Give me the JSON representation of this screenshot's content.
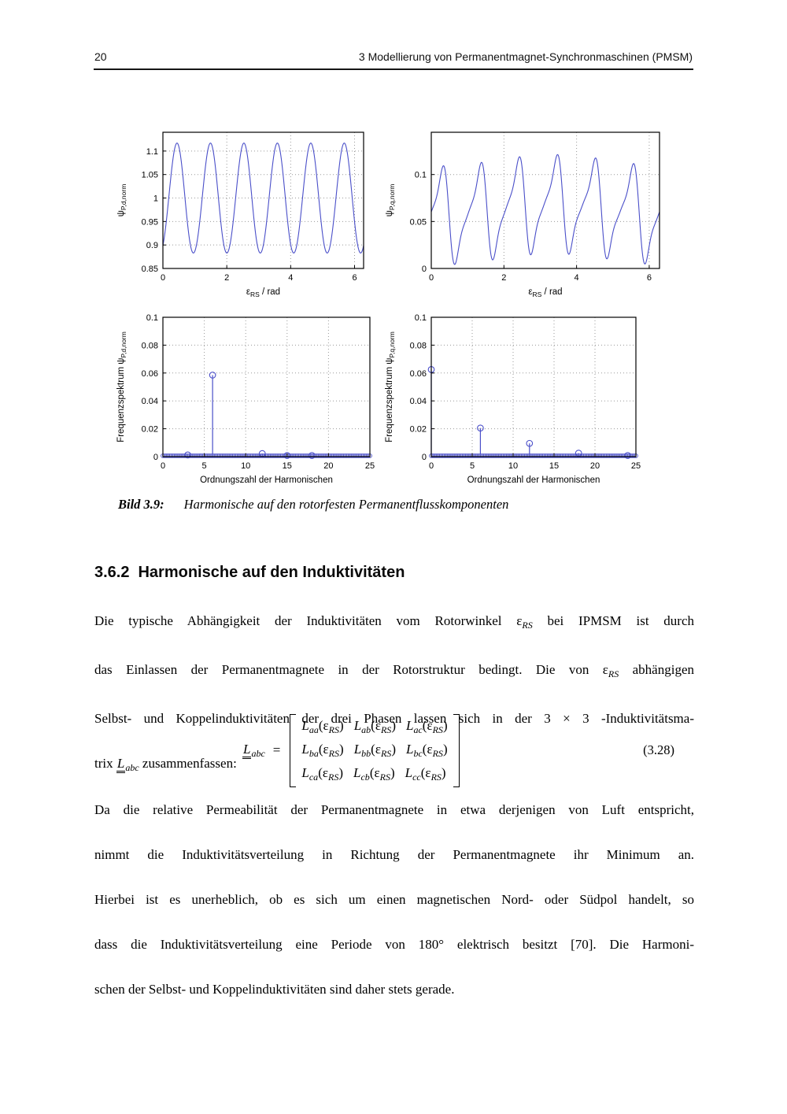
{
  "page": {
    "number": "20",
    "running_title": "3 Modellierung von Permanentmagnet-Synchronmaschinen (PMSM)"
  },
  "colors": {
    "curve": "#4a4fc9",
    "axis": "#000000",
    "grid": "#999999",
    "rule": "#161616"
  },
  "figure": {
    "caption_label": "Bild 3.9:",
    "caption_text": "Harmonische auf den rotorfesten Permanentflusskomponenten"
  },
  "chart_data": [
    {
      "name": "flux-d-waveform",
      "type": "line",
      "ylabel": {
        "pre": "ψ",
        "sub": "P,d,norm",
        "post": ""
      },
      "xlabel": {
        "pre": "ε",
        "sub": "RS",
        "post": " / rad"
      },
      "xlim": [
        0,
        6.2832
      ],
      "ylim": [
        0.85,
        1.14
      ],
      "xticks": [
        {
          "v": 0,
          "l": "0"
        },
        {
          "v": 2,
          "l": "2"
        },
        {
          "v": 4,
          "l": "4"
        },
        {
          "v": 6,
          "l": "6"
        }
      ],
      "yticks": [
        {
          "v": 0.85,
          "l": "0.85"
        },
        {
          "v": 0.9,
          "l": "0.9"
        },
        {
          "v": 0.95,
          "l": "0.95"
        },
        {
          "v": 1,
          "l": "1"
        },
        {
          "v": 1.05,
          "l": "1.05"
        },
        {
          "v": 1.1,
          "l": "1.1"
        }
      ],
      "grid_x": [
        2,
        4,
        6
      ],
      "grid_y": [
        0.9,
        0.95,
        1,
        1.05,
        1.1
      ],
      "grid_on": true,
      "legend": null,
      "model": {
        "dc": 0.9975,
        "harmonics": [
          {
            "n": 6,
            "amp": 0.117,
            "phase": -1.05
          },
          {
            "n": 12,
            "amp": 0.003,
            "phase": 2.0
          }
        ]
      }
    },
    {
      "name": "flux-q-waveform",
      "type": "line",
      "ylabel": {
        "pre": "ψ",
        "sub": "P,q,norm",
        "post": ""
      },
      "xlabel": {
        "pre": "ε",
        "sub": "RS",
        "post": " / rad"
      },
      "xlim": [
        0,
        6.2832
      ],
      "ylim": [
        0,
        0.145
      ],
      "xticks": [
        {
          "v": 0,
          "l": "0"
        },
        {
          "v": 2,
          "l": "2"
        },
        {
          "v": 4,
          "l": "4"
        },
        {
          "v": 6,
          "l": "6"
        }
      ],
      "yticks": [
        {
          "v": 0,
          "l": "0"
        },
        {
          "v": 0.05,
          "l": "0.05"
        },
        {
          "v": 0.1,
          "l": "0.1"
        }
      ],
      "grid_x": [
        2,
        4,
        6
      ],
      "grid_y": [
        0.05,
        0.1
      ],
      "grid_on": true,
      "legend": null,
      "model": {
        "dc": 0.0625,
        "harmonics": [
          {
            "n": 1,
            "amp": 0.006,
            "phase": 4.5
          },
          {
            "n": 6,
            "amp": 0.041,
            "phase": 0.2
          },
          {
            "n": 12,
            "amp": 0.019,
            "phase": 3.54
          },
          {
            "n": 18,
            "amp": 0.005,
            "phase": 0.6
          }
        ]
      }
    },
    {
      "name": "spectrum-d",
      "type": "stem",
      "ylabel": {
        "pre": "Frequenzspektrum ψ",
        "sub": "P,d,norm",
        "post": ""
      },
      "xlabel": {
        "pre": "Ordnungszahl der Harmonischen",
        "sub": "",
        "post": ""
      },
      "xlim": [
        0,
        25
      ],
      "ylim": [
        0,
        0.1
      ],
      "xticks": [
        {
          "v": 0,
          "l": "0"
        },
        {
          "v": 5,
          "l": "5"
        },
        {
          "v": 10,
          "l": "10"
        },
        {
          "v": 15,
          "l": "15"
        },
        {
          "v": 20,
          "l": "20"
        },
        {
          "v": 25,
          "l": "25"
        }
      ],
      "yticks": [
        {
          "v": 0,
          "l": "0"
        },
        {
          "v": 0.02,
          "l": "0.02"
        },
        {
          "v": 0.04,
          "l": "0.04"
        },
        {
          "v": 0.06,
          "l": "0.06"
        },
        {
          "v": 0.08,
          "l": "0.08"
        },
        {
          "v": 0.1,
          "l": "0.1"
        }
      ],
      "grid_x": [
        5,
        10,
        15,
        20
      ],
      "grid_y": [
        0.02,
        0.04,
        0.06,
        0.08
      ],
      "grid_on": true,
      "legend": null,
      "stems": [
        {
          "x": 6,
          "y": 0.0585
        },
        {
          "x": 12,
          "y": 0.0022
        },
        {
          "x": 3,
          "y": 0.0012
        },
        {
          "x": 15,
          "y": 0.0008
        },
        {
          "x": 18,
          "y": 0.0008
        }
      ],
      "baseline": {
        "y": 0.0006,
        "step": 0.2,
        "r": 2.4
      },
      "marker_r": 3.8
    },
    {
      "name": "spectrum-q",
      "type": "stem",
      "ylabel": {
        "pre": "Frequenzspektrum ψ",
        "sub": "P,q,norm",
        "post": ""
      },
      "xlabel": {
        "pre": "Ordnungszahl der Harmonischen",
        "sub": "",
        "post": ""
      },
      "xlim": [
        0,
        25
      ],
      "ylim": [
        0,
        0.1
      ],
      "xticks": [
        {
          "v": 0,
          "l": "0"
        },
        {
          "v": 5,
          "l": "5"
        },
        {
          "v": 10,
          "l": "10"
        },
        {
          "v": 15,
          "l": "15"
        },
        {
          "v": 20,
          "l": "20"
        },
        {
          "v": 25,
          "l": "25"
        }
      ],
      "yticks": [
        {
          "v": 0,
          "l": "0"
        },
        {
          "v": 0.02,
          "l": "0.02"
        },
        {
          "v": 0.04,
          "l": "0.04"
        },
        {
          "v": 0.06,
          "l": "0.06"
        },
        {
          "v": 0.08,
          "l": "0.08"
        },
        {
          "v": 0.1,
          "l": "0.1"
        }
      ],
      "grid_x": [
        5,
        10,
        15,
        20
      ],
      "grid_y": [
        0.02,
        0.04,
        0.06,
        0.08
      ],
      "grid_on": true,
      "legend": null,
      "stems": [
        {
          "x": 0,
          "y": 0.0625
        },
        {
          "x": 6,
          "y": 0.0205
        },
        {
          "x": 12,
          "y": 0.0095
        },
        {
          "x": 18,
          "y": 0.0025
        },
        {
          "x": 24,
          "y": 0.0008
        }
      ],
      "baseline": {
        "y": 0.0006,
        "step": 0.2,
        "r": 2.4
      },
      "marker_r": 3.8
    }
  ],
  "section": {
    "number": "3.6.2",
    "title": "Harmonische auf den Induktivitäten"
  },
  "paragraphs": [
    {
      "lines": [
        [
          {
            "s": "t",
            "v": "Die typische Abhängigkeit der Induktivitäten vom Rotorwinkel "
          },
          {
            "s": "t",
            "v": "ε"
          },
          {
            "s": "sub",
            "v": "RS"
          },
          {
            "s": "t",
            "v": " bei IPMSM ist durch"
          }
        ],
        [
          {
            "s": "t",
            "v": "das Einlassen der Permanentmagnete in der Rotorstruktur bedingt. Die von "
          },
          {
            "s": "t",
            "v": "ε"
          },
          {
            "s": "sub",
            "v": "RS"
          },
          {
            "s": "t",
            "v": " abhängigen"
          }
        ],
        [
          {
            "s": "t",
            "v": "Selbst- und Koppelinduktivitäten der drei Phasen lassen sich in der 3 × 3 -Induktivitätsma-"
          }
        ],
        [
          {
            "s": "t",
            "v": "trix "
          },
          {
            "s": "dunder",
            "v": "L"
          },
          {
            "s": "sub",
            "v": "abc"
          },
          {
            "s": "t",
            "v": " zusammenfassen:"
          }
        ]
      ]
    },
    {
      "lines": [
        [
          {
            "s": "t",
            "v": "Da die relative Permeabilität der Permanentmagnete in etwa derjenigen von Luft entspricht,"
          }
        ],
        [
          {
            "s": "t",
            "v": "nimmt die Induktivitätsverteilung in Richtung der Permanentmagnete ihr Minimum an."
          }
        ],
        [
          {
            "s": "t",
            "v": "Hierbei ist es unerheblich, ob es sich um einen magnetischen Nord- oder Südpol handelt, so"
          }
        ],
        [
          {
            "s": "t",
            "v": "dass die Induktivitätsverteilung eine Periode von 180° elektrisch besitzt [70]. Die Harmoni-"
          }
        ],
        [
          {
            "s": "t",
            "v": "schen der Selbst- und Koppelinduktivitäten sind daher stets gerade."
          }
        ]
      ]
    }
  ],
  "equation": {
    "lhs_base": "L",
    "lhs_sub": "abc",
    "equals": "=",
    "entry_base": "L",
    "matrix": [
      [
        "aa",
        "ab",
        "ac"
      ],
      [
        "ba",
        "bb",
        "bc"
      ],
      [
        "ca",
        "cb",
        "cc"
      ]
    ],
    "arg_open": "(",
    "arg_eps": "ε",
    "arg_sub": "RS",
    "arg_close": ")",
    "number": "(3.28)"
  }
}
